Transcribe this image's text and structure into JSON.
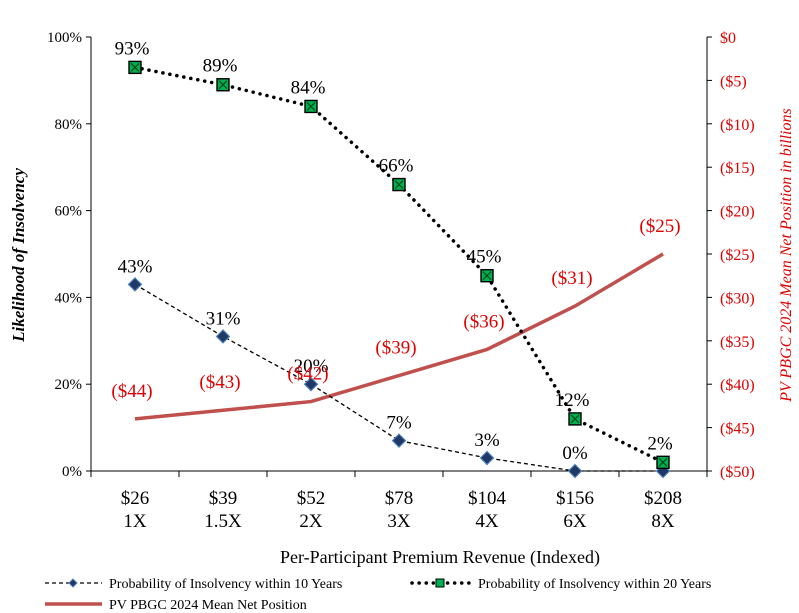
{
  "chart_data": {
    "type": "line",
    "categories": [
      "$26\n1X",
      "$39\n1.5X",
      "$52\n2X",
      "$78\n3X",
      "$104\n4X",
      "$156\n6X",
      "$208\n8X"
    ],
    "xlabel": "Per-Participant Premium Revenue  (Indexed)",
    "ylabel": "Likelihood of Insolvency",
    "y2label": "PV PBGC 2024 Mean Net Position  in billions",
    "ylim": [
      0,
      100
    ],
    "y2lim": [
      -50,
      0
    ],
    "yticks": [
      "0%",
      "20%",
      "40%",
      "60%",
      "80%",
      "100%"
    ],
    "y2ticks": [
      "($50)",
      "($45)",
      "($40)",
      "($35)",
      "($30)",
      "($25)",
      "($20)",
      "($15)",
      "($10)",
      "($5)",
      "$0"
    ],
    "grid": false,
    "legend_position": "bottom",
    "series": [
      {
        "name": "Probability of Insolvency within 10 Years",
        "axis": "left",
        "values": [
          43,
          31,
          20,
          7,
          3,
          0,
          0
        ],
        "labels": [
          "43%",
          "31%",
          "20%",
          "7%",
          "3%",
          "0%",
          ""
        ],
        "color": "#000000",
        "marker_color": "#1f3864"
      },
      {
        "name": "Probability of Insolvency within 20 Years",
        "axis": "left",
        "values": [
          93,
          89,
          84,
          66,
          45,
          12,
          2
        ],
        "labels": [
          "93%",
          "89%",
          "84%",
          "66%",
          "45%",
          "12%",
          "2%"
        ],
        "color": "#000000",
        "marker_color": "#00b050"
      },
      {
        "name": "PV PBGC 2024 Mean Net Position",
        "axis": "right",
        "values": [
          -44,
          -43,
          -42,
          -39,
          -36,
          -31,
          -25
        ],
        "labels": [
          "($44)",
          "($43)",
          "($42)",
          "($39)",
          "($36)",
          "($31)",
          "($25)"
        ],
        "color": "#c0504d"
      }
    ]
  }
}
